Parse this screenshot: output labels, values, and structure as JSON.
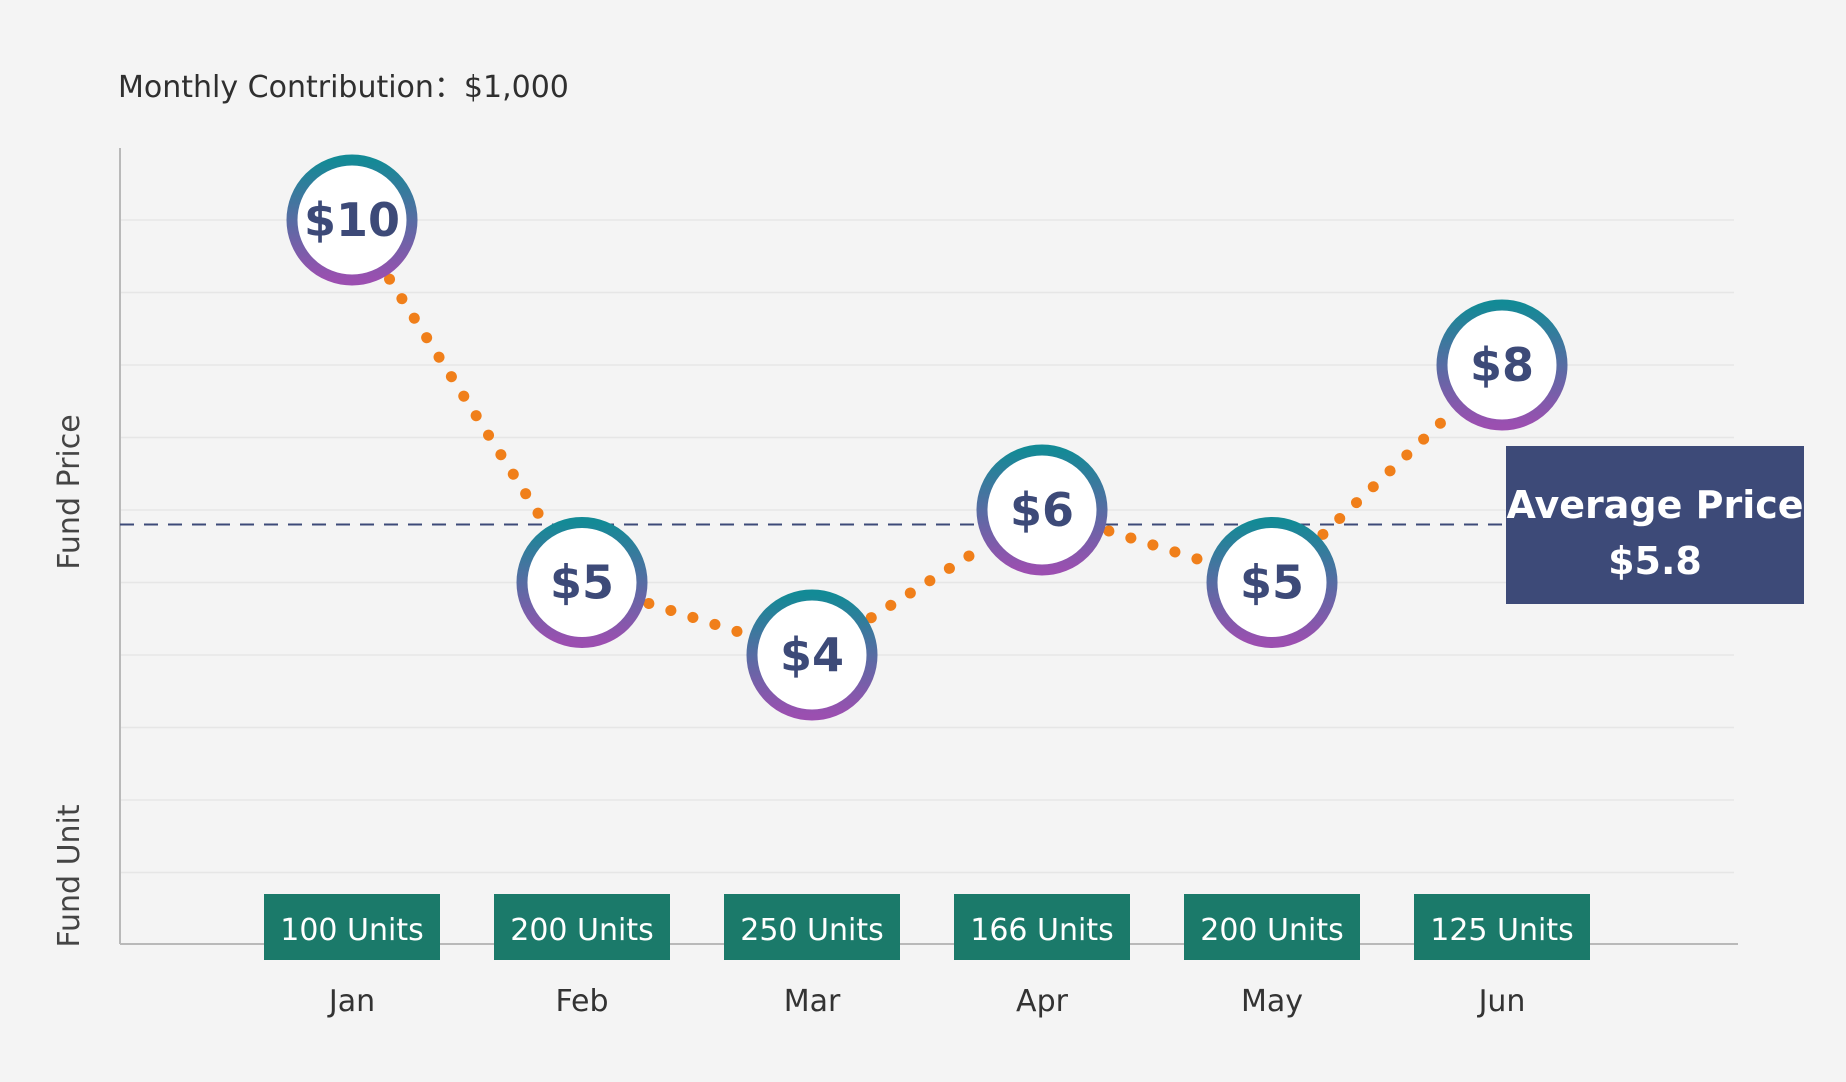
{
  "chart_data": {
    "type": "line",
    "subtitle": "Monthly Contribution：$1,000",
    "ylabel_top": "Fund Price",
    "ylabel_bottom": "Fund Unit",
    "categories": [
      "Jan",
      "Feb",
      "Mar",
      "Apr",
      "May",
      "Jun"
    ],
    "series": [
      {
        "values": [
          10,
          5,
          4,
          6,
          5,
          8
        ],
        "labels": [
          "$10",
          "$5",
          "$4",
          "$6",
          "$5",
          "$8"
        ]
      }
    ],
    "units": [
      "100 Units",
      "200 Units",
      "250 Units",
      "166 Units",
      "200 Units",
      "125 Units"
    ],
    "reference_line": {
      "value": 5.8,
      "label_line1": "Average Price",
      "label_line2": "$5.8"
    },
    "ylim": [
      0,
      11
    ],
    "grid": true,
    "colors": {
      "line": "#f07f1a",
      "ring_top": "#138a96",
      "ring_bottom": "#9b4fb0",
      "price_text": "#3d4a78",
      "units_box": "#1b7a6a",
      "avg_box": "#3d4a78",
      "reference_line": "#3d4a78"
    }
  }
}
